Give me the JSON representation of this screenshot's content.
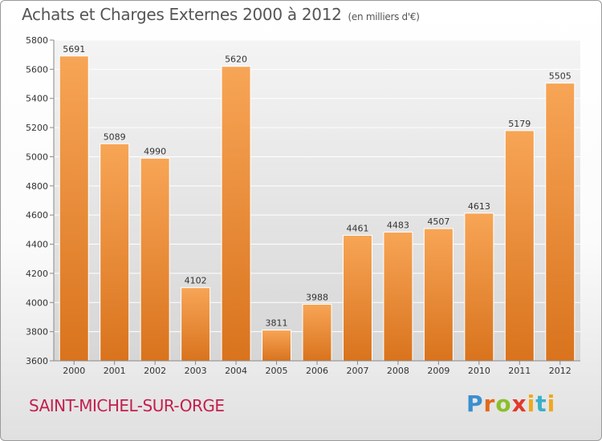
{
  "header": {
    "title": "Achats et Charges Externes 2000 à 2012",
    "unit": "(en milliers d'€)"
  },
  "footer": {
    "commune": "SAINT-MICHEL-SUR-ORGE",
    "logo_text": "Proxiti"
  },
  "colors": {
    "bar_light": "#f7a556",
    "bar_dark": "#d9731d",
    "title": "#555555",
    "commune": "#c41e4e"
  },
  "chart_data": {
    "type": "bar",
    "title": "Achats et Charges Externes 2000 à 2012",
    "unit_label": "(en milliers d'€)",
    "categories": [
      "2000",
      "2001",
      "2002",
      "2003",
      "2004",
      "2005",
      "2006",
      "2007",
      "2008",
      "2009",
      "2010",
      "2011",
      "2012"
    ],
    "values": [
      5691,
      5089,
      4990,
      4102,
      5620,
      3811,
      3988,
      4461,
      4483,
      4507,
      4613,
      5179,
      5505
    ],
    "ylim": [
      3600,
      5800
    ],
    "yticks": [
      3600,
      3800,
      4000,
      4200,
      4400,
      4600,
      4800,
      5000,
      5200,
      5400,
      5600,
      5800
    ],
    "grid": true,
    "data_labels": true
  }
}
